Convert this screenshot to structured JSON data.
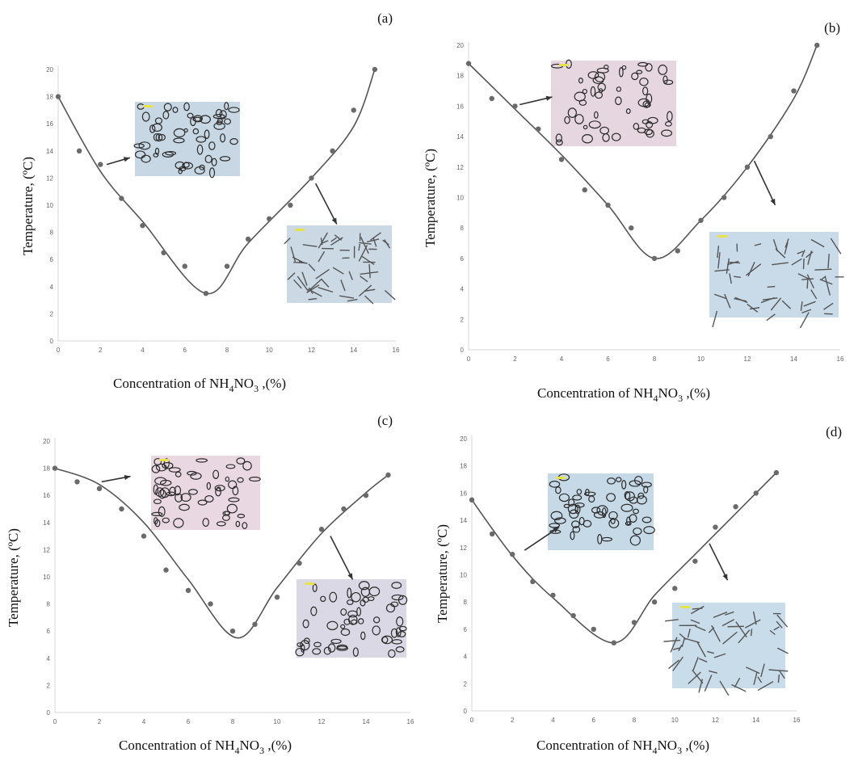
{
  "figure": {
    "x_axis_label_parts": [
      "Concentration of  NH",
      "4",
      "NO",
      "3",
      " ,(%)"
    ],
    "y_axis_label": "Temperature, (ºC)",
    "x_ticks": [
      0,
      2,
      4,
      6,
      8,
      10,
      12,
      14,
      16
    ],
    "y_ticks": [
      0,
      2,
      4,
      6,
      8,
      10,
      12,
      14,
      16,
      18,
      20
    ],
    "colors": {
      "points": "#6a6a6a",
      "fit_line": "#555555",
      "axes": "#d7d7d7",
      "text": "#111111"
    }
  },
  "chart_data": [
    {
      "panel": "(a)",
      "type": "scatter",
      "xlabel": "Concentration of NH4NO3 ,(%)",
      "ylabel": "Temperature, (ºC)",
      "xlim": [
        0,
        16
      ],
      "ylim": [
        0,
        20
      ],
      "grid": false,
      "points": {
        "x": [
          0,
          1,
          2,
          3,
          4,
          5,
          6,
          7,
          8,
          9,
          10,
          11,
          12,
          13,
          14,
          15
        ],
        "y": [
          18,
          14,
          13,
          10.5,
          8.5,
          6.5,
          5.5,
          3.5,
          5.5,
          7.5,
          9,
          10,
          12,
          14,
          17,
          20
        ]
      },
      "fit": {
        "x": [
          0,
          2,
          4,
          7,
          9,
          12,
          14,
          15
        ],
        "y": [
          18,
          12.5,
          8.8,
          3.5,
          7.2,
          12,
          15.8,
          20
        ]
      },
      "insets": [
        {
          "tone": "#c7d7e3",
          "arrow_from": [
            2.3,
            13
          ],
          "arrow_to": [
            3.4,
            13.5
          ]
        },
        {
          "tone": "#cbd9e5",
          "arrow_from": [
            12.2,
            11.6
          ],
          "arrow_to": [
            13.2,
            8.6
          ]
        }
      ]
    },
    {
      "panel": "(b)",
      "type": "scatter",
      "xlabel": "Concentration of NH4NO3 ,(%)",
      "ylabel": "Temperature, (ºC)",
      "xlim": [
        0,
        16
      ],
      "ylim": [
        0,
        20
      ],
      "grid": false,
      "points": {
        "x": [
          0,
          1,
          2,
          3,
          4,
          5,
          6,
          7,
          8,
          9,
          10,
          11,
          12,
          13,
          14,
          15
        ],
        "y": [
          18.8,
          16.5,
          16,
          14.5,
          12.5,
          10.5,
          9.5,
          8,
          6,
          6.5,
          8.5,
          10,
          12,
          14,
          17,
          20
        ]
      },
      "fit": {
        "x": [
          0,
          2,
          4,
          6,
          8,
          10,
          12,
          14,
          15
        ],
        "y": [
          18.8,
          15.8,
          12.8,
          9.5,
          6,
          8.5,
          12,
          16.5,
          20
        ]
      },
      "insets": [
        {
          "tone": "#e6d6df",
          "arrow_from": [
            2.2,
            16.1
          ],
          "arrow_to": [
            3.6,
            16.6
          ]
        },
        {
          "tone": "#c9dbe9",
          "arrow_from": [
            12.3,
            12.4
          ],
          "arrow_to": [
            13.2,
            9.5
          ]
        }
      ]
    },
    {
      "panel": "(c)",
      "type": "scatter",
      "xlabel": "Concentration of NH4NO3 ,(%)",
      "ylabel": "Temperature, (ºC)",
      "xlim": [
        0,
        16
      ],
      "ylim": [
        0,
        20
      ],
      "grid": false,
      "points": {
        "x": [
          0,
          1,
          2,
          3,
          4,
          5,
          6,
          7,
          8,
          9,
          10,
          11,
          12,
          13,
          14,
          15
        ],
        "y": [
          18,
          17,
          16.5,
          15,
          13,
          10.5,
          9,
          8,
          6,
          6.5,
          8.5,
          11,
          13.5,
          15,
          16,
          17.5
        ]
      },
      "fit": {
        "x": [
          0,
          2,
          4,
          6,
          8.2,
          10,
          12,
          14,
          15
        ],
        "y": [
          18,
          16.8,
          14,
          9.8,
          5.5,
          9.2,
          13.2,
          16.2,
          17.5
        ]
      },
      "insets": [
        {
          "tone": "#e9d8e1",
          "arrow_from": [
            2.1,
            17
          ],
          "arrow_to": [
            3.4,
            17.4
          ]
        },
        {
          "tone": "#d9d8e4",
          "arrow_from": [
            12.4,
            13
          ],
          "arrow_to": [
            13.4,
            9.8
          ]
        }
      ]
    },
    {
      "panel": "(d)",
      "type": "scatter",
      "xlabel": "Concentration of NH4NO3 ,(%)",
      "ylabel": "Temperature, (ºC)",
      "xlim": [
        0,
        16
      ],
      "ylim": [
        0,
        20
      ],
      "grid": false,
      "points": {
        "x": [
          0,
          1,
          2,
          3,
          4,
          5,
          6,
          7,
          8,
          9,
          10,
          11,
          12,
          13,
          14,
          15
        ],
        "y": [
          15.5,
          13,
          11.5,
          9.5,
          8.5,
          7,
          6,
          5,
          6.5,
          8,
          9,
          11,
          13.5,
          15,
          16,
          17.5
        ]
      },
      "fit": {
        "x": [
          0,
          2,
          4,
          7,
          9,
          11,
          13,
          15
        ],
        "y": [
          15.5,
          11.4,
          8.3,
          5,
          8.5,
          11.5,
          14.5,
          17.5
        ]
      },
      "insets": [
        {
          "tone": "#c6d9e6",
          "arrow_from": [
            2.6,
            11.8
          ],
          "arrow_to": [
            4.3,
            13.5
          ]
        },
        {
          "tone": "#c9dce9",
          "arrow_from": [
            11.7,
            12.3
          ],
          "arrow_to": [
            12.6,
            9.6
          ]
        }
      ]
    }
  ]
}
